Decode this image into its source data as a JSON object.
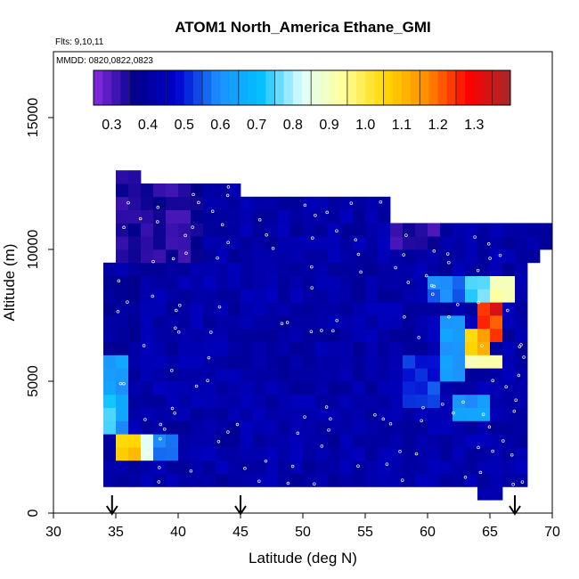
{
  "chart_data": {
    "type": "heatmap",
    "title": "ATOM1 North_America Ethane_GMI",
    "xlabel": "Latitude (deg N)",
    "ylabel": "Altitude (m)",
    "xlim": [
      30,
      70
    ],
    "ylim": [
      0,
      17500
    ],
    "xticks": [
      30,
      35,
      40,
      45,
      50,
      55,
      60,
      65,
      70
    ],
    "yticks": [
      0,
      5000,
      10000,
      15000
    ],
    "notes": [
      "Flts: 9,10,11",
      "MMDD: 0820,0822,0823"
    ],
    "colorbar": {
      "range": [
        0.25,
        1.4
      ],
      "ticks": [
        0.3,
        0.4,
        0.5,
        0.6,
        0.7,
        0.8,
        0.9,
        1.0,
        1.1,
        1.2,
        1.3
      ],
      "tick_labels": [
        "0.3",
        "0.4",
        "0.5",
        "0.6",
        "0.7",
        "0.8",
        "0.9",
        "1.0",
        "1.1",
        "1.2",
        "1.3"
      ],
      "colors": [
        "#8a2be2",
        "#00008b",
        "#0000cd",
        "#1e90ff",
        "#00bfff",
        "#e0ffff",
        "#ffff99",
        "#ffd700",
        "#ff8c00",
        "#ff0000",
        "#a52a2a"
      ]
    },
    "flight_markers_lat": [
      34.7,
      45,
      67
    ],
    "grid": {
      "lat_start": 34,
      "lat_step": 1,
      "alt_start": 500,
      "alt_step": 500,
      "background_value": 0.42,
      "regions": [
        {
          "lat": [
            34,
            37
          ],
          "alt": [
            5000,
            9500
          ],
          "value": 0.4
        },
        {
          "lat": [
            35,
            42
          ],
          "alt": [
            9500,
            13000
          ],
          "value": 0.34
        },
        {
          "lat": [
            34,
            36
          ],
          "alt": [
            3000,
            6000
          ],
          "value": 0.62
        },
        {
          "lat": [
            34,
            35
          ],
          "alt": [
            3000,
            4500
          ],
          "value": 0.75
        },
        {
          "lat": [
            35,
            37
          ],
          "alt": [
            2000,
            3000
          ],
          "value": 1.07
        },
        {
          "lat": [
            37,
            38
          ],
          "alt": [
            2000,
            3000
          ],
          "value": 0.85
        },
        {
          "lat": [
            38,
            40
          ],
          "alt": [
            2000,
            3000
          ],
          "value": 0.6
        },
        {
          "lat": [
            57,
            61
          ],
          "alt": [
            10000,
            11000
          ],
          "value": 0.33
        },
        {
          "lat": [
            60,
            63
          ],
          "alt": [
            8000,
            9000
          ],
          "value": 0.58
        },
        {
          "lat": [
            63,
            65
          ],
          "alt": [
            8000,
            9000
          ],
          "value": 0.75
        },
        {
          "lat": [
            65,
            67
          ],
          "alt": [
            8000,
            9000
          ],
          "value": 0.93
        },
        {
          "lat": [
            64,
            65
          ],
          "alt": [
            7000,
            8000
          ],
          "value": 1.25
        },
        {
          "lat": [
            65,
            66
          ],
          "alt": [
            7000,
            8000
          ],
          "value": 1.32
        },
        {
          "lat": [
            61,
            63
          ],
          "alt": [
            5000,
            7500
          ],
          "value": 0.63
        },
        {
          "lat": [
            63,
            65
          ],
          "alt": [
            5500,
            7000
          ],
          "value": 0.9
        },
        {
          "lat": [
            63,
            64
          ],
          "alt": [
            6000,
            7000
          ],
          "value": 1.05
        },
        {
          "lat": [
            64,
            65
          ],
          "alt": [
            6000,
            7000
          ],
          "value": 1.15
        },
        {
          "lat": [
            65,
            66
          ],
          "alt": [
            6500,
            7500
          ],
          "value": 1.22
        },
        {
          "lat": [
            65,
            66
          ],
          "alt": [
            5500,
            6000
          ],
          "value": 0.92
        },
        {
          "lat": [
            62,
            65
          ],
          "alt": [
            3500,
            4500
          ],
          "value": 0.62
        },
        {
          "lat": [
            58,
            61
          ],
          "alt": [
            4000,
            6000
          ],
          "value": 0.52
        }
      ]
    },
    "coverage": [
      {
        "lat": [
          34,
          68
        ],
        "alt": [
          1000,
          9500
        ]
      },
      {
        "lat": [
          35,
          69
        ],
        "alt": [
          9500,
          10500
        ]
      },
      {
        "lat": [
          35,
          70
        ],
        "alt": [
          10000,
          11000
        ]
      },
      {
        "lat": [
          35,
          57
        ],
        "alt": [
          11000,
          12000
        ]
      },
      {
        "lat": [
          35,
          45
        ],
        "alt": [
          12000,
          12500
        ]
      },
      {
        "lat": [
          35,
          37
        ],
        "alt": [
          12500,
          13000
        ]
      },
      {
        "lat": [
          64,
          66
        ],
        "alt": [
          500,
          1000
        ]
      }
    ]
  }
}
